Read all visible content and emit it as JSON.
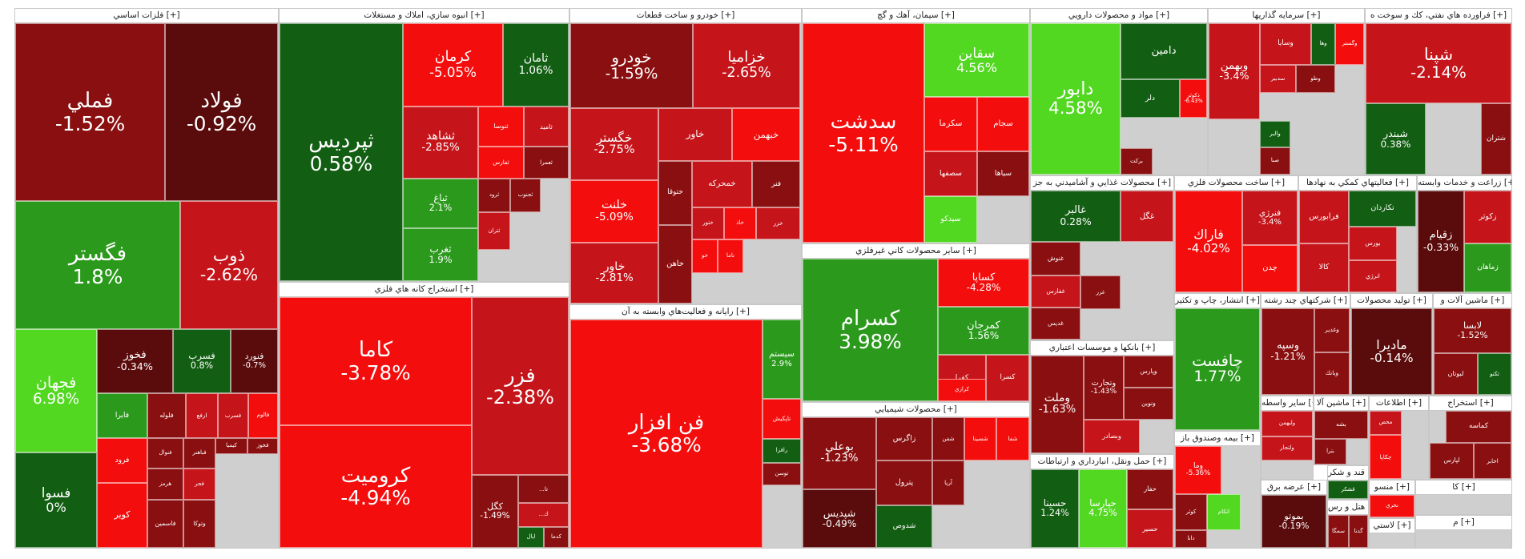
{
  "colors": {
    "g_bright": "#52d821",
    "g_mid": "#2b9a1c",
    "g_dark": "#125e12",
    "r_bright": "#f40d0d",
    "r_mid": "#c5141a",
    "r_dark": "#8a0f10",
    "r_deep": "#5a0b0b"
  },
  "chart_data": {
    "type": "treemap",
    "value_unit": "percent change",
    "sectors": [
      {
        "id": "s1",
        "title": "فلزات اساسي [+]",
        "tiles": [
          {
            "sym": "فملي",
            "chg": "-1.52%",
            "value": -1.52
          },
          {
            "sym": "فولاد",
            "chg": "-0.92%",
            "value": -0.92
          },
          {
            "sym": "فگستر",
            "chg": "1.8%",
            "value": 1.8
          },
          {
            "sym": "ذوب",
            "chg": "-2.62%",
            "value": -2.62
          },
          {
            "sym": "فجهان",
            "chg": "6.98%",
            "value": 6.98
          },
          {
            "sym": "فخوز",
            "chg": "-0.34%",
            "value": -0.34
          },
          {
            "sym": "فسرب",
            "chg": "0.8%",
            "value": 0.8
          },
          {
            "sym": "فنورد",
            "chg": "-0.7%",
            "value": -0.7
          },
          {
            "sym": "فايرا",
            "chg": "",
            "value": 1.5
          },
          {
            "sym": "فلوله",
            "chg": "",
            "value": -1.8
          },
          {
            "sym": "ارفع",
            "chg": "",
            "value": -2.5
          },
          {
            "sym": "فسرب",
            "chg": "",
            "value": -3.2
          },
          {
            "sym": "فالوم",
            "chg": "",
            "value": -4.0
          },
          {
            "sym": "فرود",
            "chg": "",
            "value": -4.5
          },
          {
            "sym": "فنوال",
            "chg": "",
            "value": -1.5
          },
          {
            "sym": "فباهنر",
            "chg": "",
            "value": -1.3
          },
          {
            "sym": "کيميا",
            "chg": "",
            "value": -1.0
          },
          {
            "sym": "فخوز",
            "chg": "",
            "value": -1.2
          },
          {
            "sym": "هرمز",
            "chg": "",
            "value": -1.4
          },
          {
            "sym": "فجر",
            "chg": "",
            "value": -2.1
          },
          {
            "sym": "فسوا",
            "chg": "0%",
            "value": 0
          },
          {
            "sym": "کوير",
            "chg": "",
            "value": -4.8
          },
          {
            "sym": "فاسمين",
            "chg": "",
            "value": -1.6
          },
          {
            "sym": "وتوكا",
            "chg": "",
            "value": -1.2
          }
        ]
      },
      {
        "id": "s2",
        "title": "انبوه سازي، املاك و مستغلات [+]",
        "tiles": [
          {
            "sym": "ثپرديس",
            "chg": "0.58%",
            "value": 0.58
          },
          {
            "sym": "كرمان",
            "chg": "-5.05%",
            "value": -5.05
          },
          {
            "sym": "ثامان",
            "chg": "1.06%",
            "value": 1.06
          },
          {
            "sym": "ثشاهد",
            "chg": "-2.85%",
            "value": -2.85
          },
          {
            "sym": "ثنوسا",
            "chg": "",
            "value": -4.2
          },
          {
            "sym": "ثاميد",
            "chg": "",
            "value": -3.0
          },
          {
            "sym": "ثفارس",
            "chg": "",
            "value": -3.8
          },
          {
            "sym": "ثعمرا",
            "chg": "",
            "value": -1.4
          },
          {
            "sym": "ثرود",
            "chg": "",
            "value": -1.3
          },
          {
            "sym": "ثجنوب",
            "chg": "",
            "value": -1.8
          },
          {
            "sym": "ثتران",
            "chg": "",
            "value": -2.6
          },
          {
            "sym": "ثباغ",
            "chg": "2.1%",
            "value": 2.1
          },
          {
            "sym": "ثغرب",
            "chg": "1.9%",
            "value": 1.9
          }
        ]
      },
      {
        "id": "s3",
        "title": "استخراج كانه هاي فلزي [+]",
        "tiles": [
          {
            "sym": "كاما",
            "chg": "-3.78%",
            "value": -3.78
          },
          {
            "sym": "كروميت",
            "chg": "-4.94%",
            "value": -4.94
          },
          {
            "sym": "فزر",
            "chg": "-2.38%",
            "value": -2.38
          },
          {
            "sym": "كگل",
            "chg": "-1.49%",
            "value": -1.49
          },
          {
            "sym": "...تا",
            "chg": "",
            "value": -1.5
          },
          {
            "sym": "...ك",
            "chg": "",
            "value": -2.0
          },
          {
            "sym": "ايال",
            "chg": "",
            "value": 1.2
          },
          {
            "sym": "كدما",
            "chg": "",
            "value": -1.6
          }
        ]
      },
      {
        "id": "s4",
        "title": "خودرو و ساخت قطعات [+]",
        "tiles": [
          {
            "sym": "خودرو",
            "chg": "-1.59%",
            "value": -1.59
          },
          {
            "sym": "خزاميا",
            "chg": "-2.65%",
            "value": -2.65
          },
          {
            "sym": "خگستر",
            "chg": "-2.75%",
            "value": -2.75
          },
          {
            "sym": "خاور",
            "chg": "",
            "value": -2.4
          },
          {
            "sym": "خبهمن",
            "chg": "",
            "value": -3.6
          },
          {
            "sym": "ختوقا",
            "chg": "",
            "value": -1.4
          },
          {
            "sym": "خمحركه",
            "chg": "",
            "value": -2.1
          },
          {
            "sym": "خلنت",
            "chg": "-5.09%",
            "value": -5.09
          },
          {
            "sym": "فنر",
            "chg": "",
            "value": -1.7
          },
          {
            "sym": "ختور",
            "chg": "",
            "value": -2.2
          },
          {
            "sym": "خاذ",
            "chg": "",
            "value": -4.6
          },
          {
            "sym": "خزر",
            "chg": "",
            "value": -2.8
          },
          {
            "sym": "خاهن",
            "chg": "",
            "value": -1.3
          },
          {
            "sym": "خاور",
            "chg": "-2.81%",
            "value": -2.81
          },
          {
            "sym": "خو",
            "chg": "",
            "value": -4.7
          },
          {
            "sym": "ناما",
            "chg": "",
            "value": -4.9
          }
        ]
      },
      {
        "id": "s5",
        "title": "رايانه و فعاليت‌هاي وابسته به آن [+]",
        "tiles": [
          {
            "sym": "فن افزار",
            "chg": "-3.68%",
            "value": -3.68
          },
          {
            "sym": "سيستم",
            "chg": "2.9%",
            "value": 2.9
          },
          {
            "sym": "تاپكيش",
            "chg": "",
            "value": -4.4
          },
          {
            "sym": "رافزا",
            "chg": "",
            "value": 1.0
          },
          {
            "sym": "توسن",
            "chg": "",
            "value": -1.3
          }
        ]
      },
      {
        "id": "s6",
        "title": "سيمان، آهك و گچ [+]",
        "tiles": [
          {
            "sym": "سدشت",
            "chg": "-5.11%",
            "value": -5.11
          },
          {
            "sym": "سقاين",
            "chg": "4.56%",
            "value": 4.56
          },
          {
            "sym": "سكرما",
            "chg": "",
            "value": -3.5
          },
          {
            "sym": "سجام",
            "chg": "",
            "value": -4.2
          },
          {
            "sym": "سصفها",
            "chg": "",
            "value": -3.1
          },
          {
            "sym": "سياها",
            "chg": "",
            "value": -1.2
          },
          {
            "sym": "سيدكو",
            "chg": "",
            "value": 4.2
          }
        ]
      },
      {
        "id": "s7",
        "title": "ساير محصولات كاني غيرفلزي [+]",
        "tiles": [
          {
            "sym": "كسرام",
            "chg": "3.98%",
            "value": 3.98
          },
          {
            "sym": "كساپا",
            "chg": "-4.28%",
            "value": -4.28
          },
          {
            "sym": "كمرجان",
            "chg": "1.56%",
            "value": 1.56
          },
          {
            "sym": "كفرا",
            "chg": "",
            "value": -2.0
          },
          {
            "sym": "كسرا",
            "chg": "",
            "value": -2.5
          },
          {
            "sym": "كرازي",
            "chg": "",
            "value": -4.0
          }
        ]
      },
      {
        "id": "s8",
        "title": "محصولات شيميايي [+]",
        "tiles": [
          {
            "sym": "بوعلي",
            "chg": "-1.23%",
            "value": -1.23
          },
          {
            "sym": "زاگرس",
            "chg": "",
            "value": -1.5
          },
          {
            "sym": "شفن",
            "chg": "",
            "value": -1.6
          },
          {
            "sym": "شسينا",
            "chg": "",
            "value": -4.1
          },
          {
            "sym": "شفا",
            "chg": "",
            "value": -4.9
          },
          {
            "sym": "پترول",
            "chg": "",
            "value": -1.3
          },
          {
            "sym": "آريا",
            "chg": "",
            "value": -1.4
          },
          {
            "sym": "شپديس",
            "chg": "-0.49%",
            "value": -0.49
          },
          {
            "sym": "شدوص",
            "chg": "",
            "value": 1.0
          }
        ]
      },
      {
        "id": "s9",
        "title": "مواد و محصولات دارويي [+]",
        "tiles": [
          {
            "sym": "دابور",
            "chg": "4.58%",
            "value": 4.58
          },
          {
            "sym": "دامين",
            "chg": "",
            "value": 1.0
          },
          {
            "sym": "دلر",
            "chg": "",
            "value": 0.8
          },
          {
            "sym": "دكوثر",
            "chg": "-6.43%",
            "value": -6.43
          },
          {
            "sym": "بركت",
            "chg": "",
            "value": -1.8
          }
        ]
      },
      {
        "id": "s10",
        "title": "سرمايه گذاريها [+]",
        "tiles": [
          {
            "sym": "وبهمن",
            "chg": "-3.4%",
            "value": -3.4
          },
          {
            "sym": "وسايا",
            "chg": "",
            "value": -2.0
          },
          {
            "sym": "وها",
            "chg": "",
            "value": 0.8
          },
          {
            "sym": "وگستر",
            "chg": "",
            "value": -4.2
          },
          {
            "sym": "سدبير",
            "chg": "",
            "value": -2.1
          },
          {
            "sym": "وطو",
            "chg": "",
            "value": -1.4
          },
          {
            "sym": "والبر",
            "chg": "",
            "value": 1.2
          },
          {
            "sym": "صبا",
            "chg": "",
            "value": -1.7
          }
        ]
      },
      {
        "id": "s11",
        "title": "فراورده هاي نفتي، كك و سوخت ه [+]",
        "tiles": [
          {
            "sym": "شپنا",
            "chg": "-2.14%",
            "value": -2.14
          },
          {
            "sym": "شبندر",
            "chg": "0.38%",
            "value": 0.38
          },
          {
            "sym": "شتران",
            "chg": "",
            "value": -1.5
          }
        ]
      },
      {
        "id": "s12",
        "title": "محصولات غذايي و آشاميدني به جز [+]",
        "tiles": [
          {
            "sym": "غالبر",
            "chg": "0.28%",
            "value": 0.28
          },
          {
            "sym": "غگل",
            "chg": "",
            "value": -2.5
          },
          {
            "sym": "غنوش",
            "chg": "",
            "value": -1.4
          },
          {
            "sym": "غفارس",
            "chg": "",
            "value": -3.0
          },
          {
            "sym": "غديس",
            "chg": "",
            "value": -1.8
          },
          {
            "sym": "غزر",
            "chg": "",
            "value": -1.2
          }
        ]
      },
      {
        "id": "s13",
        "title": "ساخت محصولات فلزي [+]",
        "tiles": [
          {
            "sym": "فاراك",
            "chg": "-4.02%",
            "value": -4.02
          },
          {
            "sym": "فنرژي",
            "chg": "-3.4%",
            "value": -3.4
          },
          {
            "sym": "چدن",
            "chg": "",
            "value": -4.2
          }
        ]
      },
      {
        "id": "s14",
        "title": "فعاليتهاي كمكي به نهادها [+]",
        "tiles": [
          {
            "sym": "تكاردان",
            "chg": "",
            "value": 1.1
          },
          {
            "sym": "فرابورس",
            "chg": "",
            "value": -2.2
          },
          {
            "sym": "بورس",
            "chg": "",
            "value": -2.8
          },
          {
            "sym": "كالا",
            "chg": "",
            "value": -2.5
          },
          {
            "sym": "انرژي",
            "chg": "",
            "value": -3.0
          }
        ]
      },
      {
        "id": "s15",
        "title": "زراعت و خدمات وابسته [+]",
        "tiles": [
          {
            "sym": "زقيام",
            "chg": "-0.33%",
            "value": -0.33
          },
          {
            "sym": "زكوثر",
            "chg": "",
            "value": -3.2
          },
          {
            "sym": "زماهان",
            "chg": "",
            "value": 1.5
          }
        ]
      },
      {
        "id": "s16",
        "title": "بانكها و موسسات اعتباري [+]",
        "tiles": [
          {
            "sym": "وملت",
            "chg": "-1.63%",
            "value": -1.63
          },
          {
            "sym": "وتجارت",
            "chg": "-1.43%",
            "value": -1.43
          },
          {
            "sym": "وپارس",
            "chg": "",
            "value": -1.6
          },
          {
            "sym": "ونوين",
            "chg": "",
            "value": -1.3
          },
          {
            "sym": "وبصادر",
            "chg": "",
            "value": -2.1
          }
        ]
      },
      {
        "id": "s17",
        "title": "انتشار، چاپ و تكثير [+]",
        "tiles": [
          {
            "sym": "چافست",
            "chg": "1.77%",
            "value": 1.77
          }
        ]
      },
      {
        "id": "s18",
        "title": "شركتهاي چند رشته [+]",
        "tiles": [
          {
            "sym": "وسپه",
            "chg": "-1.21%",
            "value": -1.21
          },
          {
            "sym": "وغدير",
            "chg": "",
            "value": -1.8
          },
          {
            "sym": "وبانك",
            "chg": "",
            "value": -1.4
          }
        ]
      },
      {
        "id": "s19",
        "title": "توليد محصولات [+]",
        "tiles": [
          {
            "sym": "ماديرا",
            "chg": "-0.14%",
            "value": -0.14
          }
        ]
      },
      {
        "id": "s20",
        "title": "ماشين آلات و [+]",
        "tiles": [
          {
            "sym": "لابسا",
            "chg": "-1.52%",
            "value": -1.52
          },
          {
            "sym": "لبوتان",
            "chg": "",
            "value": -1.6
          },
          {
            "sym": "تكنو",
            "chg": "",
            "value": 1.3
          }
        ]
      },
      {
        "id": "s21",
        "title": "بيمه وصندوق باز [+]",
        "tiles": [
          {
            "sym": "وما",
            "chg": "-5.36%",
            "value": -5.36
          },
          {
            "sym": "كوثر",
            "chg": "",
            "value": -1.5
          },
          {
            "sym": "اتكام",
            "chg": "",
            "value": 4.2
          },
          {
            "sym": "دانا",
            "chg": "",
            "value": -1.7
          }
        ]
      },
      {
        "id": "s22",
        "title": "حمل ونقل، انبارداري و ارتباطات [+]",
        "tiles": [
          {
            "sym": "حسينا",
            "chg": "1.24%",
            "value": 1.24
          },
          {
            "sym": "حپارسا",
            "chg": "4.75%",
            "value": 4.75
          },
          {
            "sym": "حفار",
            "chg": "",
            "value": -1.5
          },
          {
            "sym": "حسير",
            "chg": "",
            "value": -2.5
          }
        ]
      },
      {
        "id": "s23",
        "title": "ساير واسطه [+]",
        "tiles": [
          {
            "sym": "ولبهمن",
            "chg": "",
            "value": -2.5
          },
          {
            "sym": "ولتجار",
            "chg": "",
            "value": -3.0
          }
        ]
      },
      {
        "id": "s24",
        "title": "ماشين آلا [+]",
        "tiles": [
          {
            "sym": "بشه",
            "chg": "",
            "value": -1.5
          },
          {
            "sym": "بترا",
            "chg": "",
            "value": -1.3
          }
        ]
      },
      {
        "id": "s25",
        "title": "اطلاعات [+]",
        "tiles": [
          {
            "sym": "محص",
            "chg": "",
            "value": -2.2
          },
          {
            "sym": "چكاپا",
            "chg": "",
            "value": -4.3
          }
        ]
      },
      {
        "id": "s26",
        "title": "استخراج [+]",
        "tiles": [
          {
            "sym": "كماسه",
            "chg": "",
            "value": -1.4
          },
          {
            "sym": "لپارس",
            "chg": "",
            "value": -1.8
          },
          {
            "sym": "اخابر",
            "chg": "",
            "value": -1.2
          }
        ]
      },
      {
        "id": "s27",
        "title": "عرضه برق [+]",
        "tiles": [
          {
            "sym": "بموتو",
            "chg": "-0.19%",
            "value": -0.19
          }
        ]
      },
      {
        "id": "s28",
        "title": "قند و شكر [+]",
        "tiles": [
          {
            "sym": "قشكر",
            "chg": "",
            "value": 1.2
          }
        ]
      },
      {
        "id": "s29",
        "title": "هتل و رس [+]",
        "tiles": [
          {
            "sym": "سمگا",
            "chg": "",
            "value": -1.6
          },
          {
            "sym": "گدنا",
            "chg": "",
            "value": -1.8
          }
        ]
      },
      {
        "id": "s30",
        "title": "منسو [+]",
        "tiles": [
          {
            "sym": "نخري",
            "chg": "",
            "value": -4.4
          }
        ]
      },
      {
        "id": "s31",
        "title": "كا [+]",
        "tiles": []
      },
      {
        "id": "s32",
        "title": "لاستي [+]",
        "tiles": []
      },
      {
        "id": "s33",
        "title": "م [+]",
        "tiles": []
      }
    ]
  }
}
